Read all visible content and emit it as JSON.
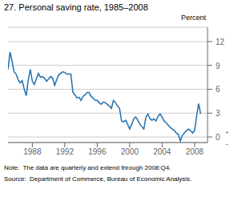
{
  "chart_data": {
    "type": "line",
    "title": "27. Personal saving rate, 1985–2008",
    "ylabel": "Percent",
    "note": "Note:  The data are quarterly and extend through 2008:Q4.",
    "source": "Source:  Department of Commerce, Bureau of Economic Analysis.",
    "annotations": [
      "+",
      "–"
    ],
    "color": "#2070b0",
    "grid": true,
    "xlim": [
      1985.0,
      2009.6
    ],
    "xticks": [
      1988,
      1992,
      1996,
      2000,
      2004,
      2008
    ],
    "ylim": [
      -0.7,
      13.8
    ],
    "yticks": [
      0,
      3,
      6,
      9,
      12
    ],
    "x": [
      1985.0,
      1985.25,
      1985.5,
      1985.75,
      1986.0,
      1986.25,
      1986.5,
      1986.75,
      1987.0,
      1987.25,
      1987.5,
      1987.75,
      1988.0,
      1988.25,
      1988.5,
      1988.75,
      1989.0,
      1989.25,
      1989.5,
      1989.75,
      1990.0,
      1990.25,
      1990.5,
      1990.75,
      1991.0,
      1991.25,
      1991.5,
      1991.75,
      1992.0,
      1992.25,
      1992.5,
      1992.75,
      1993.0,
      1993.25,
      1993.5,
      1993.75,
      1994.0,
      1994.25,
      1994.5,
      1994.75,
      1995.0,
      1995.25,
      1995.5,
      1995.75,
      1996.0,
      1996.25,
      1996.5,
      1996.75,
      1997.0,
      1997.25,
      1997.5,
      1997.75,
      1998.0,
      1998.25,
      1998.5,
      1998.75,
      1999.0,
      1999.25,
      1999.5,
      1999.75,
      2000.0,
      2000.25,
      2000.5,
      2000.75,
      2001.0,
      2001.25,
      2001.5,
      2001.75,
      2002.0,
      2002.25,
      2002.5,
      2002.75,
      2003.0,
      2003.25,
      2003.5,
      2003.75,
      2004.0,
      2004.25,
      2004.5,
      2004.75,
      2005.0,
      2005.25,
      2005.5,
      2005.75,
      2006.0,
      2006.25,
      2006.5,
      2006.75,
      2007.0,
      2007.25,
      2007.5,
      2007.75,
      2008.0,
      2008.25,
      2008.5,
      2008.75
    ],
    "values": [
      8.5,
      10.7,
      9.5,
      8.2,
      7.9,
      7.2,
      6.8,
      7.1,
      6.0,
      5.2,
      7.2,
      8.5,
      7.0,
      6.6,
      7.3,
      8.0,
      7.5,
      7.6,
      7.4,
      7.0,
      7.3,
      7.6,
      7.4,
      6.5,
      7.2,
      7.8,
      8.0,
      8.2,
      8.1,
      7.9,
      7.9,
      7.9,
      5.6,
      5.3,
      4.9,
      5.0,
      4.6,
      5.1,
      5.3,
      5.6,
      5.6,
      5.1,
      4.9,
      4.6,
      4.6,
      4.3,
      4.1,
      4.4,
      4.3,
      4.1,
      3.9,
      3.6,
      4.6,
      4.3,
      3.9,
      3.6,
      2.0,
      1.9,
      2.1,
      1.6,
      1.0,
      1.6,
      2.3,
      2.5,
      2.1,
      1.6,
      1.3,
      1.0,
      2.5,
      2.9,
      2.3,
      2.1,
      2.3,
      2.0,
      2.6,
      2.9,
      2.5,
      2.0,
      1.8,
      1.5,
      1.2,
      1.0,
      0.8,
      0.5,
      0.3,
      -0.5,
      0.2,
      0.5,
      0.8,
      1.0,
      0.8,
      0.5,
      0.8,
      2.6,
      4.2,
      2.9
    ]
  }
}
